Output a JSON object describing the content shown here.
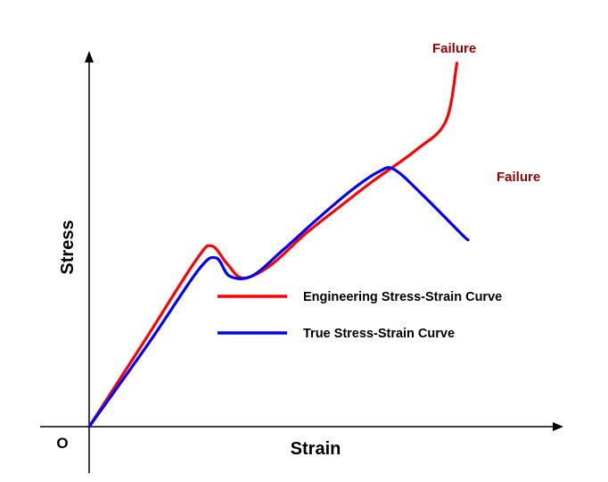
{
  "chart_data": {
    "type": "line",
    "title": "",
    "xlabel": "Strain",
    "ylabel": "Stress",
    "origin_label": "O",
    "x_ticks": [],
    "y_ticks": [],
    "grid": false,
    "legend_position": "center-right",
    "series": [
      {
        "name": "Engineering Stress-Strain Curve",
        "color": "#ff0000",
        "points": [
          [
            0,
            0
          ],
          [
            25,
            43
          ],
          [
            48,
            83
          ],
          [
            55,
            90
          ],
          [
            62,
            81
          ],
          [
            69,
            74
          ],
          [
            81,
            80
          ],
          [
            97,
            96
          ],
          [
            113,
            110
          ],
          [
            127,
            122
          ],
          [
            147,
            138
          ],
          [
            160,
            152
          ],
          [
            165,
            181
          ]
        ],
        "end_label": "Failure"
      },
      {
        "name": "True Stress-Strain Curve",
        "color": "#0000ff",
        "points": [
          [
            0,
            0
          ],
          [
            27,
            42
          ],
          [
            49,
            78
          ],
          [
            57,
            84
          ],
          [
            63,
            75
          ],
          [
            73,
            75
          ],
          [
            87,
            88
          ],
          [
            102,
            103
          ],
          [
            118,
            118
          ],
          [
            130,
            127
          ],
          [
            137,
            128
          ],
          [
            150,
            115
          ],
          [
            167,
            96
          ],
          [
            170,
            93
          ]
        ],
        "end_label": "Failure"
      }
    ],
    "failure_color": "#990000",
    "axis_color": "#000000"
  }
}
